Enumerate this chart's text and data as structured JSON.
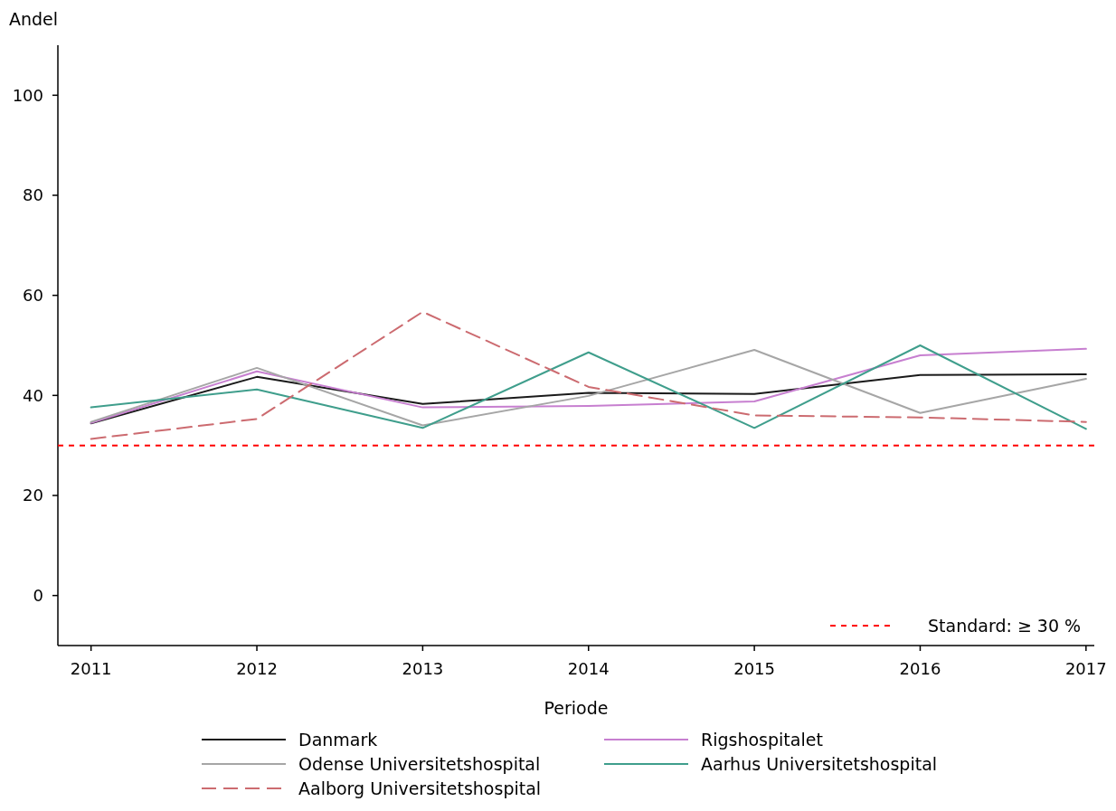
{
  "chart_data": {
    "type": "line",
    "xlabel": "Periode",
    "ylabel": "Andel",
    "x": [
      2011,
      2012,
      2013,
      2014,
      2015,
      2016,
      2017
    ],
    "xlim": [
      2010.8,
      2017.05
    ],
    "xticks": [
      2011,
      2012,
      2013,
      2014,
      2015,
      2016,
      2017
    ],
    "ylim": [
      -10,
      110
    ],
    "yticks": [
      0,
      20,
      40,
      60,
      80,
      100
    ],
    "series": [
      {
        "name": "Danmark",
        "color": "#1a1a1a",
        "values": [
          34.4,
          43.7,
          38.3,
          40.5,
          40.3,
          44.1,
          44.2
        ]
      },
      {
        "name": "Rigshospitalet",
        "color": "#c77fd0",
        "values": [
          34.5,
          44.8,
          37.6,
          37.9,
          38.8,
          48.0,
          49.3
        ]
      },
      {
        "name": "Odense Universitetshospital",
        "color": "#a6a6a6",
        "values": [
          34.7,
          45.5,
          34.0,
          39.9,
          49.1,
          36.5,
          43.3
        ]
      },
      {
        "name": "Aarhus Universitetshospital",
        "color": "#3f9e8c",
        "values": [
          37.6,
          41.2,
          33.5,
          48.6,
          33.5,
          50.0,
          33.3
        ]
      },
      {
        "name": "Aalborg Universitetshospital",
        "color": "#cc6b70",
        "values": [
          31.3,
          35.3,
          56.7,
          41.7,
          36.0,
          35.6,
          34.7
        ],
        "line_style": "dashed"
      }
    ],
    "ref_lines": [
      {
        "axis": "y",
        "value": 30,
        "label": "Standard: ≥ 30 %",
        "color": "#ff0000",
        "line_style": "dotted"
      }
    ],
    "legend": "bottom",
    "grid": false,
    "marker": "none"
  }
}
